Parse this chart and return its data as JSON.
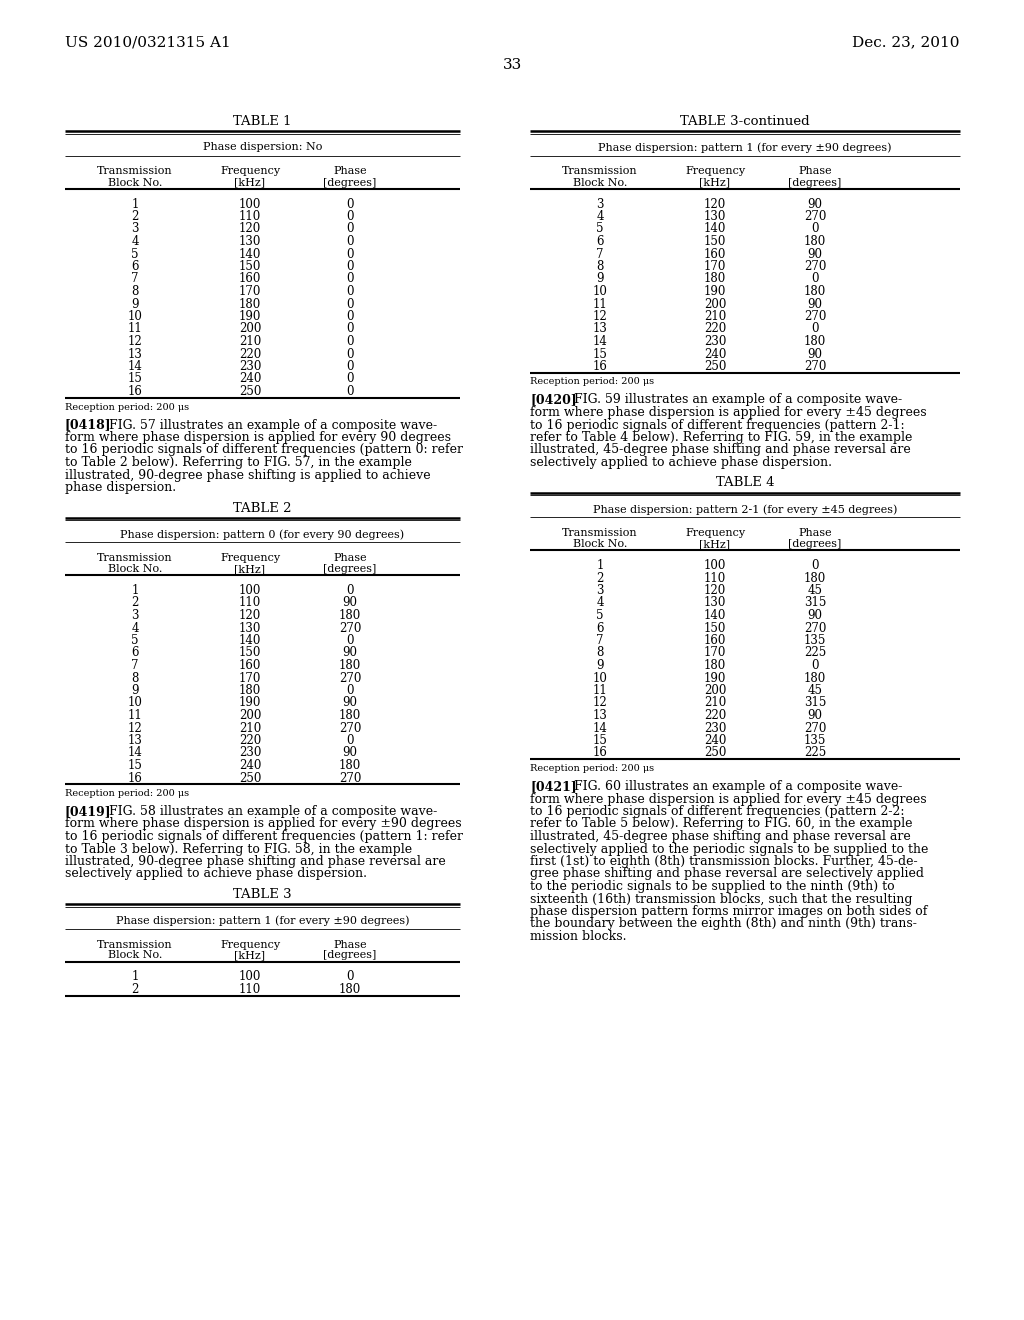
{
  "header_left": "US 2010/0321315 A1",
  "header_right": "Dec. 23, 2010",
  "page_number": "33",
  "table1": {
    "title": "TABLE 1",
    "subtitle": "Phase dispersion: No",
    "col_headers": [
      "Transmission\nBlock No.",
      "Frequency\n[kHz]",
      "Phase\n[degrees]"
    ],
    "rows": [
      [
        1,
        100,
        0
      ],
      [
        2,
        110,
        0
      ],
      [
        3,
        120,
        0
      ],
      [
        4,
        130,
        0
      ],
      [
        5,
        140,
        0
      ],
      [
        6,
        150,
        0
      ],
      [
        7,
        160,
        0
      ],
      [
        8,
        170,
        0
      ],
      [
        9,
        180,
        0
      ],
      [
        10,
        190,
        0
      ],
      [
        11,
        200,
        0
      ],
      [
        12,
        210,
        0
      ],
      [
        13,
        220,
        0
      ],
      [
        14,
        230,
        0
      ],
      [
        15,
        240,
        0
      ],
      [
        16,
        250,
        0
      ]
    ],
    "footer": "Reception period: 200 μs"
  },
  "table3cont": {
    "title": "TABLE 3-continued",
    "subtitle": "Phase dispersion: pattern 1 (for every ±90 degrees)",
    "col_headers": [
      "Transmission\nBlock No.",
      "Frequency\n[kHz]",
      "Phase\n[degrees]"
    ],
    "rows": [
      [
        3,
        120,
        90
      ],
      [
        4,
        130,
        270
      ],
      [
        5,
        140,
        0
      ],
      [
        6,
        150,
        180
      ],
      [
        7,
        160,
        90
      ],
      [
        8,
        170,
        270
      ],
      [
        9,
        180,
        0
      ],
      [
        10,
        190,
        180
      ],
      [
        11,
        200,
        90
      ],
      [
        12,
        210,
        270
      ],
      [
        13,
        220,
        0
      ],
      [
        14,
        230,
        180
      ],
      [
        15,
        240,
        90
      ],
      [
        16,
        250,
        270
      ]
    ],
    "footer": "Reception period: 200 μs"
  },
  "table2": {
    "title": "TABLE 2",
    "subtitle": "Phase dispersion: pattern 0 (for every 90 degrees)",
    "col_headers": [
      "Transmission\nBlock No.",
      "Frequency\n[kHz]",
      "Phase\n[degrees]"
    ],
    "rows": [
      [
        1,
        100,
        0
      ],
      [
        2,
        110,
        90
      ],
      [
        3,
        120,
        180
      ],
      [
        4,
        130,
        270
      ],
      [
        5,
        140,
        0
      ],
      [
        6,
        150,
        90
      ],
      [
        7,
        160,
        180
      ],
      [
        8,
        170,
        270
      ],
      [
        9,
        180,
        0
      ],
      [
        10,
        190,
        90
      ],
      [
        11,
        200,
        180
      ],
      [
        12,
        210,
        270
      ],
      [
        13,
        220,
        0
      ],
      [
        14,
        230,
        90
      ],
      [
        15,
        240,
        180
      ],
      [
        16,
        250,
        270
      ]
    ],
    "footer": "Reception period: 200 μs"
  },
  "table3": {
    "title": "TABLE 3",
    "subtitle": "Phase dispersion: pattern 1 (for every ±90 degrees)",
    "col_headers": [
      "Transmission\nBlock No.",
      "Frequency\n[kHz]",
      "Phase\n[degrees]"
    ],
    "rows": [
      [
        1,
        100,
        0
      ],
      [
        2,
        110,
        180
      ]
    ],
    "footer": ""
  },
  "table4": {
    "title": "TABLE 4",
    "subtitle": "Phase dispersion: pattern 2-1 (for every ±45 degrees)",
    "col_headers": [
      "Transmission\nBlock No.",
      "Frequency\n[kHz]",
      "Phase\n[degrees]"
    ],
    "rows": [
      [
        1,
        100,
        0
      ],
      [
        2,
        110,
        180
      ],
      [
        3,
        120,
        45
      ],
      [
        4,
        130,
        315
      ],
      [
        5,
        140,
        90
      ],
      [
        6,
        150,
        270
      ],
      [
        7,
        160,
        135
      ],
      [
        8,
        170,
        225
      ],
      [
        9,
        180,
        0
      ],
      [
        10,
        190,
        180
      ],
      [
        11,
        200,
        45
      ],
      [
        12,
        210,
        315
      ],
      [
        13,
        220,
        90
      ],
      [
        14,
        230,
        270
      ],
      [
        15,
        240,
        135
      ],
      [
        16,
        250,
        225
      ]
    ],
    "footer": "Reception period: 200 μs"
  },
  "para0418_lines": [
    "[0418]",
    "FIG. 57 illustrates an example of a composite wave-",
    "form where phase dispersion is applied for every 90 degrees",
    "to 16 periodic signals of different frequencies (pattern 0: refer",
    "to Table 2 below). Referring to FIG. 57, in the example",
    "illustrated, 90-degree phase shifting is applied to achieve",
    "phase dispersion."
  ],
  "para0418_fig": "57",
  "para0419_lines": [
    "[0419]",
    "FIG. 58 illustrates an example of a composite wave-",
    "form where phase dispersion is applied for every ±90 degrees",
    "to 16 periodic signals of different frequencies (pattern 1: refer",
    "to Table 3 below). Referring to FIG. 58, in the example",
    "illustrated, 90-degree phase shifting and phase reversal are",
    "selectively applied to achieve phase dispersion."
  ],
  "para0419_fig": "58",
  "para0420_lines": [
    "[0420]",
    "FIG. 59 illustrates an example of a composite wave-",
    "form where phase dispersion is applied for every ±45 degrees",
    "to 16 periodic signals of different frequencies (pattern 2-1:",
    "refer to Table 4 below). Referring to FIG. 59, in the example",
    "illustrated, 45-degree phase shifting and phase reversal are",
    "selectively applied to achieve phase dispersion."
  ],
  "para0420_fig": "59",
  "para0421_lines": [
    "[0421]",
    "FIG. 60 illustrates an example of a composite wave-",
    "form where phase dispersion is applied for every ±45 degrees",
    "to 16 periodic signals of different frequencies (pattern 2-2:",
    "refer to Table 5 below). Referring to FIG. 60, in the example",
    "illustrated, 45-degree phase shifting and phase reversal are",
    "selectively applied to the periodic signals to be supplied to the",
    "first (1st) to eighth (8th) transmission blocks. Further, 45-de-",
    "gree phase shifting and phase reversal are selectively applied",
    "to the periodic signals to be supplied to the ninth (9th) to",
    "sixteenth (16th) transmission blocks, such that the resulting",
    "phase dispersion pattern forms mirror images on both sides of",
    "the boundary between the eighth (8th) and ninth (9th) trans-",
    "mission blocks."
  ],
  "para0421_fig": "60"
}
